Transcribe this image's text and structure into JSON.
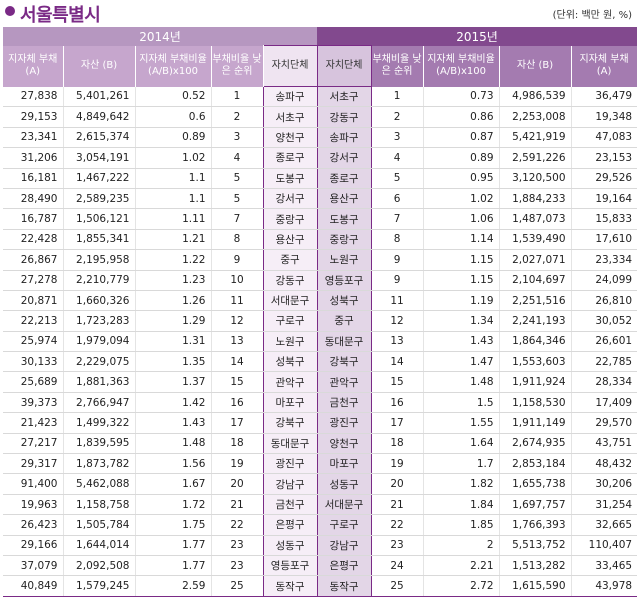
{
  "header": {
    "title": "서울특별시",
    "unit": "(단위: 백만 원, %)"
  },
  "years": {
    "y2014": "2014년",
    "y2015": "2015년"
  },
  "columns_2014": {
    "debt": "지자체 부채 (A)",
    "assets": "자산 (B)",
    "ratio": "지자체 부채비율 (A/B)x100",
    "rank": "부채비율 낮은 순위",
    "local": "자치단체"
  },
  "columns_2015": {
    "local": "자치단체",
    "rank": "부채비율 낮은 순위",
    "ratio": "지자체 부채비율 (A/B)x100",
    "assets": "자산 (B)",
    "debt": "지자체 부채 (A)"
  },
  "rows": [
    {
      "d14": "27,838",
      "a14": "5,401,261",
      "r14": "0.52",
      "k14": "1",
      "n14": "송파구",
      "n15": "서초구",
      "k15": "1",
      "r15": "0.73",
      "a15": "4,986,539",
      "d15": "36,479"
    },
    {
      "d14": "29,153",
      "a14": "4,849,642",
      "r14": "0.6",
      "k14": "2",
      "n14": "서초구",
      "n15": "강동구",
      "k15": "2",
      "r15": "0.86",
      "a15": "2,253,008",
      "d15": "19,348"
    },
    {
      "d14": "23,341",
      "a14": "2,615,374",
      "r14": "0.89",
      "k14": "3",
      "n14": "양천구",
      "n15": "송파구",
      "k15": "3",
      "r15": "0.87",
      "a15": "5,421,919",
      "d15": "47,083"
    },
    {
      "d14": "31,206",
      "a14": "3,054,191",
      "r14": "1.02",
      "k14": "4",
      "n14": "종로구",
      "n15": "강서구",
      "k15": "4",
      "r15": "0.89",
      "a15": "2,591,226",
      "d15": "23,153"
    },
    {
      "d14": "16,181",
      "a14": "1,467,222",
      "r14": "1.1",
      "k14": "5",
      "n14": "도봉구",
      "n15": "종로구",
      "k15": "5",
      "r15": "0.95",
      "a15": "3,120,500",
      "d15": "29,526"
    },
    {
      "d14": "28,490",
      "a14": "2,589,235",
      "r14": "1.1",
      "k14": "5",
      "n14": "강서구",
      "n15": "용산구",
      "k15": "6",
      "r15": "1.02",
      "a15": "1,884,233",
      "d15": "19,164"
    },
    {
      "d14": "16,787",
      "a14": "1,506,121",
      "r14": "1.11",
      "k14": "7",
      "n14": "중랑구",
      "n15": "도봉구",
      "k15": "7",
      "r15": "1.06",
      "a15": "1,487,073",
      "d15": "15,833"
    },
    {
      "d14": "22,428",
      "a14": "1,855,341",
      "r14": "1.21",
      "k14": "8",
      "n14": "용산구",
      "n15": "중랑구",
      "k15": "8",
      "r15": "1.14",
      "a15": "1,539,490",
      "d15": "17,610"
    },
    {
      "d14": "26,867",
      "a14": "2,195,958",
      "r14": "1.22",
      "k14": "9",
      "n14": "중구",
      "n15": "노원구",
      "k15": "9",
      "r15": "1.15",
      "a15": "2,027,071",
      "d15": "23,334"
    },
    {
      "d14": "27,278",
      "a14": "2,210,779",
      "r14": "1.23",
      "k14": "10",
      "n14": "강동구",
      "n15": "영등포구",
      "k15": "9",
      "r15": "1.15",
      "a15": "2,104,697",
      "d15": "24,099"
    },
    {
      "d14": "20,871",
      "a14": "1,660,326",
      "r14": "1.26",
      "k14": "11",
      "n14": "서대문구",
      "n15": "성북구",
      "k15": "11",
      "r15": "1.19",
      "a15": "2,251,516",
      "d15": "26,810"
    },
    {
      "d14": "22,213",
      "a14": "1,723,283",
      "r14": "1.29",
      "k14": "12",
      "n14": "구로구",
      "n15": "중구",
      "k15": "12",
      "r15": "1.34",
      "a15": "2,241,193",
      "d15": "30,052"
    },
    {
      "d14": "25,974",
      "a14": "1,979,094",
      "r14": "1.31",
      "k14": "13",
      "n14": "노원구",
      "n15": "동대문구",
      "k15": "13",
      "r15": "1.43",
      "a15": "1,864,346",
      "d15": "26,601"
    },
    {
      "d14": "30,133",
      "a14": "2,229,075",
      "r14": "1.35",
      "k14": "14",
      "n14": "성북구",
      "n15": "강북구",
      "k15": "14",
      "r15": "1.47",
      "a15": "1,553,603",
      "d15": "22,785"
    },
    {
      "d14": "25,689",
      "a14": "1,881,363",
      "r14": "1.37",
      "k14": "15",
      "n14": "관악구",
      "n15": "관악구",
      "k15": "15",
      "r15": "1.48",
      "a15": "1,911,924",
      "d15": "28,334"
    },
    {
      "d14": "39,373",
      "a14": "2,766,947",
      "r14": "1.42",
      "k14": "16",
      "n14": "마포구",
      "n15": "금천구",
      "k15": "16",
      "r15": "1.5",
      "a15": "1,158,530",
      "d15": "17,409"
    },
    {
      "d14": "21,423",
      "a14": "1,499,322",
      "r14": "1.43",
      "k14": "17",
      "n14": "강북구",
      "n15": "광진구",
      "k15": "17",
      "r15": "1.55",
      "a15": "1,911,149",
      "d15": "29,570"
    },
    {
      "d14": "27,217",
      "a14": "1,839,595",
      "r14": "1.48",
      "k14": "18",
      "n14": "동대문구",
      "n15": "양천구",
      "k15": "18",
      "r15": "1.64",
      "a15": "2,674,935",
      "d15": "43,751"
    },
    {
      "d14": "29,317",
      "a14": "1,873,782",
      "r14": "1.56",
      "k14": "19",
      "n14": "광진구",
      "n15": "마포구",
      "k15": "19",
      "r15": "1.7",
      "a15": "2,853,184",
      "d15": "48,432"
    },
    {
      "d14": "91,400",
      "a14": "5,462,088",
      "r14": "1.67",
      "k14": "20",
      "n14": "강남구",
      "n15": "성동구",
      "k15": "20",
      "r15": "1.82",
      "a15": "1,655,738",
      "d15": "30,206"
    },
    {
      "d14": "19,963",
      "a14": "1,158,758",
      "r14": "1.72",
      "k14": "21",
      "n14": "금천구",
      "n15": "서대문구",
      "k15": "21",
      "r15": "1.84",
      "a15": "1,697,757",
      "d15": "31,254"
    },
    {
      "d14": "26,423",
      "a14": "1,505,784",
      "r14": "1.75",
      "k14": "22",
      "n14": "은평구",
      "n15": "구로구",
      "k15": "22",
      "r15": "1.85",
      "a15": "1,766,393",
      "d15": "32,665"
    },
    {
      "d14": "29,166",
      "a14": "1,644,014",
      "r14": "1.77",
      "k14": "23",
      "n14": "성동구",
      "n15": "강남구",
      "k15": "23",
      "r15": "2",
      "a15": "5,513,752",
      "d15": "110,407"
    },
    {
      "d14": "37,079",
      "a14": "2,092,508",
      "r14": "1.77",
      "k14": "23",
      "n14": "영등포구",
      "n15": "은평구",
      "k15": "24",
      "r15": "2.21",
      "a15": "1,513,282",
      "d15": "33,465"
    },
    {
      "d14": "40,849",
      "a14": "1,579,245",
      "r14": "2.59",
      "k14": "25",
      "n14": "동작구",
      "n15": "동작구",
      "k15": "25",
      "r15": "2.72",
      "a15": "1,615,590",
      "d15": "43,978"
    }
  ]
}
